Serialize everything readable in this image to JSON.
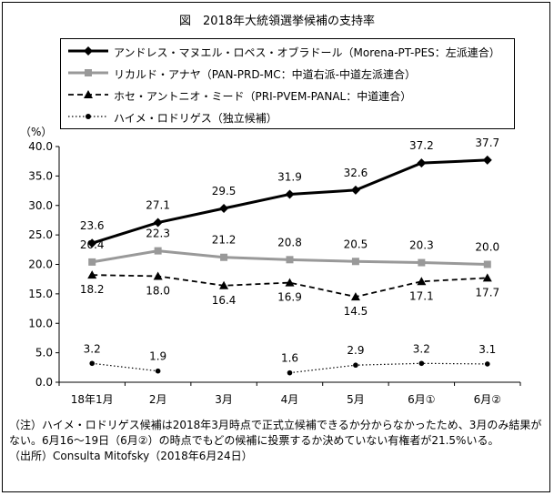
{
  "title": "図　2018年大統領選挙候補の支持率",
  "unit": "（%）",
  "chart_data": {
    "type": "line",
    "categories": [
      "18年1月",
      "2月",
      "3月",
      "4月",
      "5月",
      "6月①",
      "6月②"
    ],
    "ylim": [
      0,
      40
    ],
    "yticks": [
      "0.0",
      "5.0",
      "10.0",
      "15.0",
      "20.0",
      "25.0",
      "30.0",
      "35.0",
      "40.0"
    ],
    "grid": false,
    "legend_position": "top",
    "series": [
      {
        "name": "アンドレス・マヌエル・ロペス・オブラドール（Morena-PT-PES：左派連合）",
        "values": [
          23.6,
          27.1,
          29.5,
          31.9,
          32.6,
          37.2,
          37.7
        ],
        "labels": [
          "23.6",
          "27.1",
          "29.5",
          "31.9",
          "32.6",
          "37.2",
          "37.7"
        ],
        "color": "#000000",
        "style": "solid-diamond"
      },
      {
        "name": "リカルド・アナヤ（PAN-PRD-MC：中道右派-中道左派連合）",
        "values": [
          20.4,
          22.3,
          21.2,
          20.8,
          20.5,
          20.3,
          20.0
        ],
        "labels": [
          "20.4",
          "22.3",
          "21.2",
          "20.8",
          "20.5",
          "20.3",
          "20.0"
        ],
        "color": "#999999",
        "style": "solid-square"
      },
      {
        "name": "ホセ・アントニオ・ミード（PRI-PVEM-PANAL：中道連合）",
        "values": [
          18.2,
          18.0,
          16.4,
          16.9,
          14.5,
          17.1,
          17.7
        ],
        "labels": [
          "18.2",
          "18.0",
          "16.4",
          "16.9",
          "14.5",
          "17.1",
          "17.7"
        ],
        "color": "#000000",
        "style": "dashed-triangle"
      },
      {
        "name": "ハイメ・ロドリゲス（独立候補）",
        "values": [
          3.2,
          1.9,
          null,
          1.6,
          2.9,
          3.2,
          3.1
        ],
        "labels": [
          "3.2",
          "1.9",
          "",
          "1.6",
          "2.9",
          "3.2",
          "3.1"
        ],
        "color": "#000000",
        "style": "dotted-circle"
      }
    ]
  },
  "notes": {
    "note": "（注）ハイメ・ロドリゲス候補は2018年3月時点で正式立候補できるか分からなかったため、3月のみ結果がない。6月16〜19日（6月②）の時点でもどの候補に投票するか決めていない有権者が21.5%いる。",
    "source": "（出所）Consulta Mitofsky（2018年6月24日）"
  }
}
